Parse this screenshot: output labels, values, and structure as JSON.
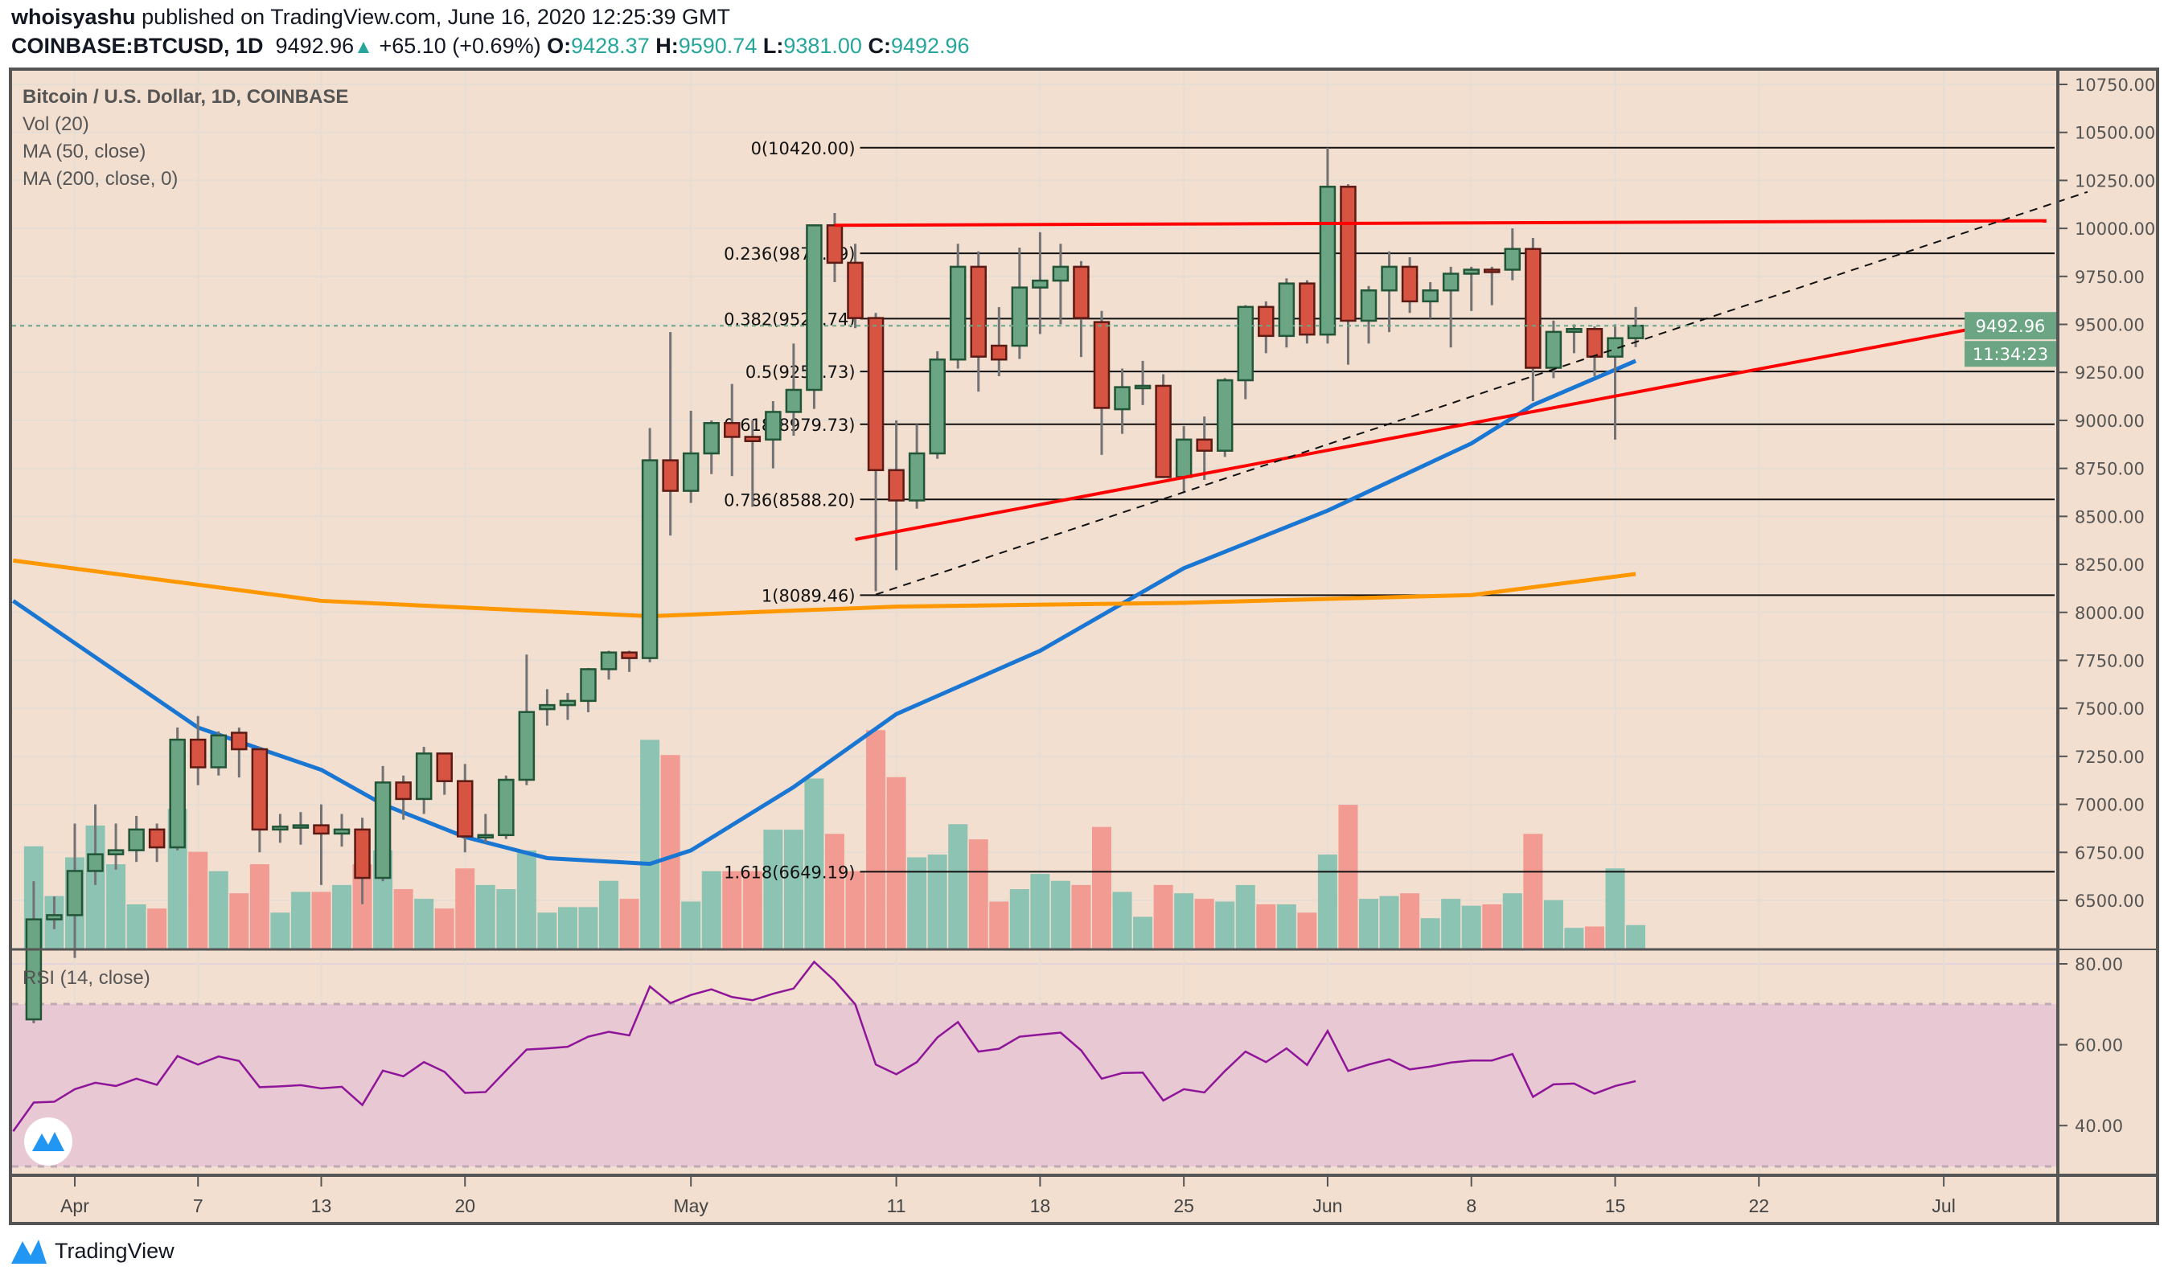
{
  "header": {
    "author": "whoisyashu",
    "published": "published on TradingView.com, June 16, 2020 12:25:39 GMT",
    "symbol": "COINBASE:BTCUSD, 1D",
    "last": "9492.96",
    "change": "+65.10 (+0.69%)",
    "o_label": "O:",
    "o": "9428.37",
    "h_label": "H:",
    "h": "9590.74",
    "l_label": "L:",
    "l": "9381.00",
    "c_label": "C:",
    "c": "9492.96"
  },
  "legend": {
    "title": "Bitcoin / U.S. Dollar, 1D, COINBASE",
    "vol": "Vol (20)",
    "ma50": "MA (50, close)",
    "ma200": "MA (200, close, 0)",
    "rsi": "RSI (14, close)"
  },
  "price_badge": "9492.96",
  "countdown": "11:34:23",
  "footer": {
    "brand": "TradingView"
  },
  "colors": {
    "background": "#f2dfcf",
    "up": "#6ba583",
    "down": "#d75442",
    "ma50": "#1976d2",
    "ma200": "#ff9800",
    "rsi": "#8e1599",
    "trendline": "#ff0000",
    "badge": "#6ba583"
  },
  "chart_data": [
    {
      "type": "candlestick",
      "title": "Bitcoin / U.S. Dollar, 1D, COINBASE",
      "ylim": [
        6400,
        10800
      ],
      "y_ticks": [
        "6500.00",
        "6750.00",
        "7000.00",
        "7250.00",
        "7500.00",
        "7750.00",
        "8000.00",
        "8250.00",
        "8500.00",
        "8750.00",
        "9000.00",
        "9250.00",
        "9500.00",
        "9750.00",
        "10000.00",
        "10250.00",
        "10500.00",
        "10750.00"
      ],
      "x_ticks": [
        {
          "date": "2020-04-01",
          "label": "Apr"
        },
        {
          "date": "2020-04-07",
          "label": "7"
        },
        {
          "date": "2020-04-13",
          "label": "13"
        },
        {
          "date": "2020-04-20",
          "label": "20"
        },
        {
          "date": "2020-05-01",
          "label": "May"
        },
        {
          "date": "2020-05-11",
          "label": "11"
        },
        {
          "date": "2020-05-18",
          "label": "18"
        },
        {
          "date": "2020-05-25",
          "label": "25"
        },
        {
          "date": "2020-06-01",
          "label": "Jun"
        },
        {
          "date": "2020-06-08",
          "label": "8"
        },
        {
          "date": "2020-06-15",
          "label": "15"
        },
        {
          "date": "2020-06-22",
          "label": "22"
        },
        {
          "date": "2020-07-01",
          "label": "Jul"
        }
      ],
      "start_date": "2020-03-30",
      "ohlc": [
        [
          5880,
          6600,
          5860,
          6401
        ],
        [
          6401,
          6520,
          6350,
          6423
        ],
        [
          6423,
          6900,
          6200,
          6653
        ],
        [
          6653,
          7000,
          6580,
          6740
        ],
        [
          6740,
          6900,
          6660,
          6761
        ],
        [
          6761,
          6940,
          6700,
          6869
        ],
        [
          6869,
          6900,
          6700,
          6776
        ],
        [
          6776,
          7400,
          6760,
          7337
        ],
        [
          7337,
          7460,
          7100,
          7193
        ],
        [
          7193,
          7380,
          7150,
          7359
        ],
        [
          7373,
          7400,
          7140,
          7287
        ],
        [
          7287,
          7300,
          6750,
          6869
        ],
        [
          6869,
          6950,
          6800,
          6884
        ],
        [
          6884,
          6960,
          6790,
          6891
        ],
        [
          6891,
          7000,
          6580,
          6848
        ],
        [
          6848,
          6950,
          6780,
          6869
        ],
        [
          6869,
          6930,
          6480,
          6617
        ],
        [
          6617,
          7200,
          6600,
          7114
        ],
        [
          7114,
          7150,
          6920,
          7028
        ],
        [
          7028,
          7300,
          6950,
          7265
        ],
        [
          7265,
          7250,
          7050,
          7121
        ],
        [
          7121,
          7210,
          6750,
          6833
        ],
        [
          6833,
          6950,
          6800,
          6840
        ],
        [
          6840,
          7150,
          6820,
          7128
        ],
        [
          7128,
          7780,
          7100,
          7481
        ],
        [
          7496,
          7600,
          7410,
          7517
        ],
        [
          7517,
          7580,
          7440,
          7539
        ],
        [
          7539,
          7710,
          7480,
          7704
        ],
        [
          7704,
          7800,
          7650,
          7791
        ],
        [
          7791,
          7800,
          7690,
          7762
        ],
        [
          7762,
          8960,
          7740,
          8792
        ],
        [
          8792,
          9460,
          8400,
          8633
        ],
        [
          8633,
          9050,
          8570,
          8828
        ],
        [
          8828,
          9000,
          8720,
          8986
        ],
        [
          8986,
          9190,
          8710,
          8914
        ],
        [
          8914,
          9000,
          8550,
          8892
        ],
        [
          8900,
          9100,
          8750,
          9044
        ],
        [
          9044,
          9400,
          8920,
          9159
        ],
        [
          9159,
          10000,
          9060,
          10016
        ],
        [
          10016,
          10080,
          9720,
          9821
        ],
        [
          9821,
          9920,
          9480,
          9533
        ],
        [
          9533,
          9560,
          8110,
          8741
        ],
        [
          8741,
          9000,
          8220,
          8583
        ],
        [
          8583,
          8980,
          8540,
          8828
        ],
        [
          8828,
          9360,
          8800,
          9317
        ],
        [
          9317,
          9920,
          9270,
          9800
        ],
        [
          9800,
          9880,
          9150,
          9332
        ],
        [
          9389,
          9590,
          9230,
          9317
        ],
        [
          9389,
          9900,
          9320,
          9692
        ],
        [
          9692,
          9980,
          9450,
          9728
        ],
        [
          9728,
          9920,
          9500,
          9800
        ],
        [
          9800,
          9830,
          9330,
          9533
        ],
        [
          9512,
          9570,
          8820,
          9065
        ],
        [
          9058,
          9270,
          8930,
          9173
        ],
        [
          9173,
          9310,
          9080,
          9180
        ],
        [
          9180,
          9240,
          8700,
          8705
        ],
        [
          8705,
          8970,
          8630,
          8900
        ],
        [
          8900,
          9020,
          8690,
          8842
        ],
        [
          8842,
          9220,
          8810,
          9209
        ],
        [
          9209,
          9600,
          9110,
          9591
        ],
        [
          9591,
          9620,
          9350,
          9440
        ],
        [
          9440,
          9740,
          9380,
          9713
        ],
        [
          9713,
          9730,
          9400,
          9447
        ],
        [
          9447,
          10420,
          9400,
          10217
        ],
        [
          10217,
          10230,
          9290,
          9519
        ],
        [
          9519,
          9700,
          9400,
          9677
        ],
        [
          9677,
          9880,
          9460,
          9800
        ],
        [
          9800,
          9850,
          9560,
          9620
        ],
        [
          9620,
          9720,
          9530,
          9677
        ],
        [
          9677,
          9800,
          9380,
          9764
        ],
        [
          9764,
          9800,
          9570,
          9785
        ],
        [
          9785,
          9800,
          9600,
          9780
        ],
        [
          9785,
          10000,
          9730,
          9893
        ],
        [
          9893,
          9950,
          9100,
          9274
        ],
        [
          9274,
          9520,
          9220,
          9461
        ],
        [
          9461,
          9500,
          9350,
          9476
        ],
        [
          9476,
          9490,
          9230,
          9332
        ],
        [
          9332,
          9500,
          8900,
          9428
        ],
        [
          9428.37,
          9590.74,
          9381.0,
          9492.96
        ]
      ],
      "volume": [
        74,
        38,
        66,
        89,
        61,
        32,
        29,
        101,
        70,
        56,
        40,
        61,
        26,
        41,
        41,
        46,
        61,
        71,
        43,
        36,
        29,
        58,
        46,
        43,
        71,
        26,
        30,
        30,
        49,
        36,
        151,
        140,
        34,
        56,
        56,
        56,
        86,
        86,
        123,
        83,
        56,
        158,
        124,
        66,
        68,
        90,
        79,
        34,
        43,
        54,
        49,
        46,
        88,
        41,
        23,
        46,
        40,
        36,
        34,
        46,
        32,
        32,
        26,
        68,
        104,
        36,
        38,
        40,
        22,
        36,
        31,
        32,
        40,
        83,
        35,
        15,
        16,
        58,
        17
      ],
      "ma50": [
        [
          "2020-03-29",
          8060
        ],
        [
          "2020-04-07",
          7400
        ],
        [
          "2020-04-13",
          7180
        ],
        [
          "2020-04-16",
          7000
        ],
        [
          "2020-04-20",
          6830
        ],
        [
          "2020-04-24",
          6720
        ],
        [
          "2020-04-29",
          6690
        ],
        [
          "2020-05-01",
          6760
        ],
        [
          "2020-05-06",
          7090
        ],
        [
          "2020-05-11",
          7470
        ],
        [
          "2020-05-18",
          7800
        ],
        [
          "2020-05-25",
          8230
        ],
        [
          "2020-06-01",
          8530
        ],
        [
          "2020-06-08",
          8880
        ],
        [
          "2020-06-11",
          9080
        ],
        [
          "2020-06-16",
          9310
        ]
      ],
      "ma200": [
        [
          "2020-03-29",
          8270
        ],
        [
          "2020-04-13",
          8060
        ],
        [
          "2020-04-29",
          7980
        ],
        [
          "2020-05-11",
          8030
        ],
        [
          "2020-05-25",
          8050
        ],
        [
          "2020-06-08",
          8090
        ],
        [
          "2020-06-16",
          8200
        ]
      ],
      "fib_levels": [
        {
          "label": "0(10420.00)",
          "price": 10420.0
        },
        {
          "label": "0.236(9870.19)",
          "price": 9870.19
        },
        {
          "label": "0.382(9529.74)",
          "price": 9529.74
        },
        {
          "label": "0.5(9254.73)",
          "price": 9254.73
        },
        {
          "label": "0.618(8979.73)",
          "price": 8979.73
        },
        {
          "label": "0.786(8588.20)",
          "price": 8588.2
        },
        {
          "label": "1(8089.46)",
          "price": 8089.46
        },
        {
          "label": "1.618(6649.19)",
          "price": 6649.19
        }
      ],
      "fib_range": [
        "2020-05-09",
        "2020-07-08"
      ],
      "trendlines": [
        {
          "style": "solid-red",
          "from": [
            "2020-05-08",
            10016
          ],
          "to": [
            "2020-07-06",
            10040
          ]
        },
        {
          "style": "solid-red",
          "from": [
            "2020-05-09",
            8380
          ],
          "to": [
            "2020-07-06",
            9550
          ]
        },
        {
          "style": "dashed-black",
          "from": [
            "2020-05-10",
            8093
          ],
          "to": [
            "2020-07-08",
            10190
          ]
        }
      ]
    },
    {
      "type": "line",
      "title": "RSI (14, close)",
      "ylim": [
        27,
        84
      ],
      "y_ticks": [
        "40.00",
        "60.00",
        "80.00"
      ],
      "bands": [
        30,
        70
      ],
      "start_date": "2020-03-29",
      "values": [
        38.6,
        45.7,
        45.9,
        49,
        50.6,
        49.8,
        51.6,
        50.1,
        57.2,
        55.1,
        57.1,
        56,
        49.5,
        49.7,
        50,
        49.2,
        49.6,
        45.1,
        53.6,
        52.2,
        55.7,
        53.3,
        48.1,
        48.3,
        53.6,
        58.8,
        59.1,
        59.5,
        62,
        63.2,
        62.3,
        74.4,
        70.3,
        72.3,
        73.7,
        71.8,
        71,
        72.6,
        73.9,
        80.5,
        75.8,
        70,
        55.1,
        52.7,
        55.7,
        61.8,
        65.6,
        58.3,
        59,
        62,
        62.5,
        63,
        58.6,
        51.6,
        53,
        53.1,
        46.2,
        49,
        48.2,
        53.5,
        58.3,
        55.7,
        59.1,
        55,
        63.4,
        53.5,
        55.1,
        56.4,
        53.9,
        54.6,
        55.6,
        56.1,
        56.1,
        57.7,
        47.1,
        50.2,
        50.4,
        47.9,
        49.8,
        51
      ]
    }
  ]
}
